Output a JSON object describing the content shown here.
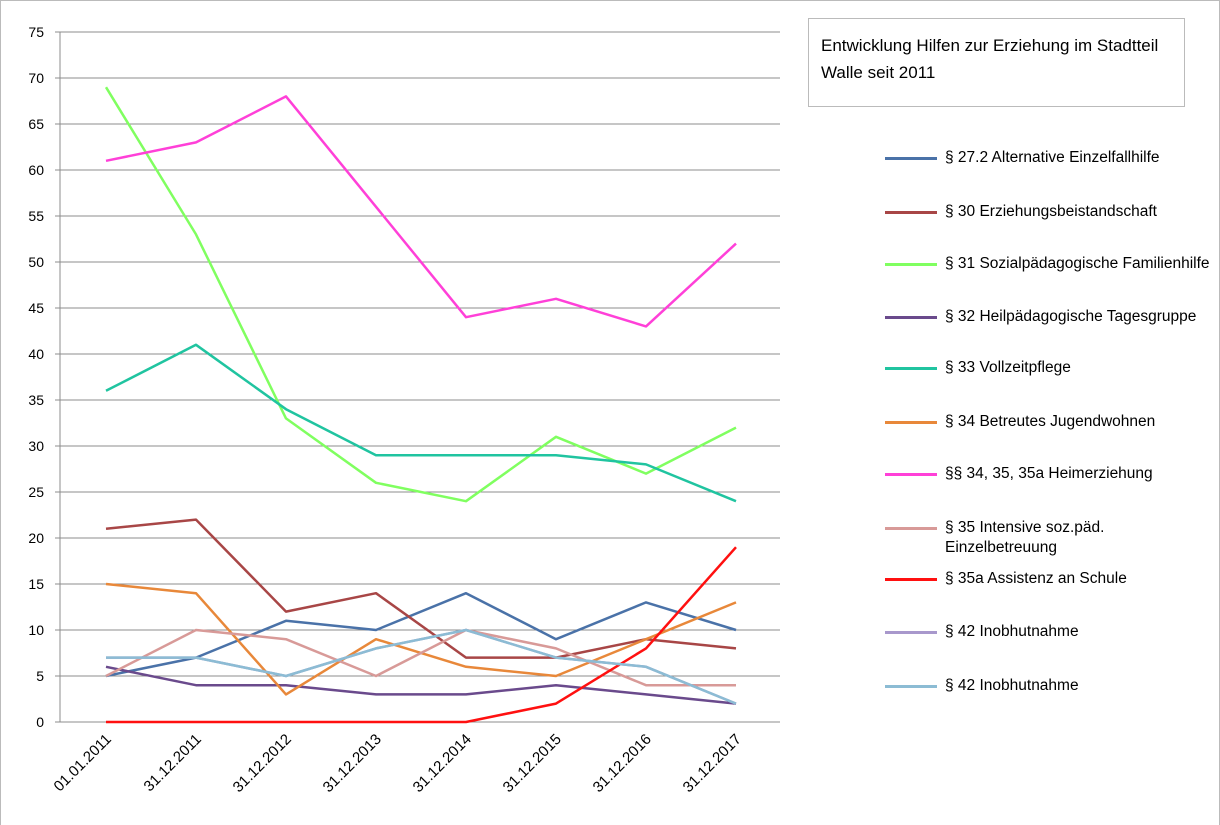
{
  "chart_data": {
    "type": "line",
    "title": "Entwicklung Hilfen zur Erziehung im Stadtteil Walle seit 2011",
    "categories": [
      "01.01.2011",
      "31.12.2011",
      "31.12.2012",
      "31.12.2013",
      "31.12.2014",
      "31.12.2015",
      "31.12.2016",
      "31.12.2017"
    ],
    "series": [
      {
        "name": "§ 27.2 Alternative Einzelfallhilfe",
        "color": "#4a72a8",
        "values": [
          5,
          7,
          11,
          10,
          14,
          9,
          13,
          10
        ]
      },
      {
        "name": "§ 30 Erziehungsbeistandschaft",
        "color": "#a84646",
        "values": [
          21,
          22,
          12,
          14,
          7,
          7,
          9,
          8
        ]
      },
      {
        "name": "§ 31 Sozialpädagogische Familienhilfe",
        "color": "#80ff60",
        "values": [
          69,
          53,
          33,
          26,
          24,
          31,
          27,
          32
        ]
      },
      {
        "name": "§ 32 Heilpädagogische Tagesgruppe",
        "color": "#6a4a8c",
        "values": [
          6,
          4,
          4,
          3,
          3,
          4,
          3,
          2
        ]
      },
      {
        "name": "§ 33 Vollzeitpflege",
        "color": "#20c4a0",
        "values": [
          36,
          41,
          34,
          29,
          29,
          29,
          28,
          24
        ]
      },
      {
        "name": "§ 34 Betreutes Jugendwohnen",
        "color": "#e8883a",
        "values": [
          15,
          14,
          3,
          9,
          6,
          5,
          9,
          13
        ]
      },
      {
        "name": "§§ 34, 35, 35a Heimerziehung",
        "color": "#ff40d8",
        "values": [
          61,
          63,
          68,
          56,
          44,
          46,
          43,
          52
        ]
      },
      {
        "name": "§ 35 Intensive soz.päd. Einzelbetreuung",
        "color": "#d89a98",
        "values": [
          5,
          10,
          9,
          5,
          10,
          8,
          4,
          4
        ]
      },
      {
        "name": "§ 35a Assistenz an Schule",
        "color": "#ff1010",
        "values": [
          0,
          0,
          0,
          0,
          0,
          2,
          8,
          19
        ]
      },
      {
        "name": "§ 42 Inobhutnahme",
        "color": "#a898cc",
        "values": [
          7,
          7,
          5,
          8,
          10,
          7,
          6,
          2
        ]
      },
      {
        "name": "§ 42 Inobhutnahme",
        "color": "#8cbcd4",
        "values": [
          7,
          7,
          5,
          8,
          10,
          7,
          6,
          2
        ]
      }
    ],
    "ylim": [
      0,
      75
    ],
    "yticks": [
      0,
      5,
      10,
      15,
      20,
      25,
      30,
      35,
      40,
      45,
      50,
      55,
      60,
      65,
      70,
      75
    ],
    "grid": true
  }
}
